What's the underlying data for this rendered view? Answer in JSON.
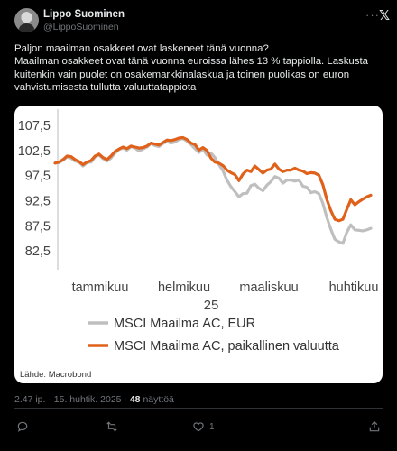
{
  "author": {
    "name": "Lippo Suominen",
    "handle": "@LippoSuominen"
  },
  "header": {
    "more_label": "···",
    "logo": "𝕏"
  },
  "tweet": {
    "lines": [
      "Paljon maailman osakkeet ovat laskeneet tänä vuonna?",
      "Maailman osakkeet ovat tänä vuonna euroissa lähes 13 % tappiolla. Laskusta",
      "kuitenkin vain puolet on osakemarkkinalaskua ja toinen puolikas on euron",
      "vahvistumisesta tullutta valuuttatappiota"
    ]
  },
  "meta": {
    "timestamp": "2.47 ip. · 15. huhtik. 2025 · ",
    "views_count": "48",
    "views_label": " näyttöä"
  },
  "actions": [
    {
      "icon": "reply-icon",
      "count": ""
    },
    {
      "icon": "retweet-icon",
      "count": ""
    },
    {
      "icon": "like-icon",
      "count": "1"
    },
    {
      "icon": "share-icon",
      "count": ""
    }
  ],
  "colors": {
    "eur_series": "#bfbfbf",
    "local_series": "#e0611a",
    "background": "#000000"
  },
  "chart_data": {
    "type": "line",
    "y_ticks": [
      "107,5",
      "102,5",
      "97,5",
      "92,5",
      "87,5",
      "82,5"
    ],
    "ylim": [
      80,
      109.5
    ],
    "x_ticks": [
      "tammikuu",
      "helmikuu",
      "maaliskuu",
      "huhtikuu"
    ],
    "x_sublabel": "25",
    "source": "Lähde: Macrobond",
    "grid": false,
    "legend_position": "bottom-left",
    "series": [
      {
        "name": "MSCI Maailma AC, EUR",
        "color": "#bfbfbf",
        "x": [
          0,
          1,
          2,
          3,
          4,
          5,
          6,
          7,
          8,
          9,
          10,
          11,
          12,
          13,
          14,
          15,
          16,
          17,
          18,
          19,
          20,
          21,
          22,
          23,
          24,
          25,
          26,
          27,
          28,
          29,
          30,
          31,
          32,
          33,
          34,
          35,
          36,
          37,
          38,
          39,
          40,
          41,
          42,
          43,
          44,
          45,
          46,
          47,
          48,
          49,
          50,
          51,
          52,
          53,
          54,
          55,
          56,
          57,
          58,
          59,
          60,
          61,
          62,
          63,
          64,
          65,
          66,
          67,
          68,
          69,
          70,
          71,
          72,
          73,
          74,
          75,
          76,
          77,
          78,
          79
        ],
        "values": [
          100.0,
          100.1,
          100.6,
          101.2,
          101.0,
          100.4,
          100.2,
          99.4,
          100.1,
          100.2,
          101.2,
          101.6,
          100.9,
          100.4,
          101.0,
          102.0,
          102.7,
          103.0,
          102.6,
          103.3,
          103.0,
          102.4,
          102.8,
          103.2,
          103.9,
          103.5,
          103.3,
          103.9,
          104.3,
          104.0,
          104.2,
          104.7,
          104.9,
          104.4,
          103.7,
          102.9,
          102.1,
          102.8,
          101.6,
          102.0,
          101.1,
          99.7,
          98.5,
          96.6,
          95.3,
          94.3,
          93.3,
          93.9,
          94.0,
          95.5,
          95.8,
          95.0,
          94.5,
          95.6,
          96.3,
          97.3,
          97.0,
          96.0,
          96.6,
          96.6,
          96.4,
          96.6,
          95.4,
          95.2,
          94.1,
          94.3,
          93.9,
          92.0,
          89.1,
          86.8,
          84.8,
          84.3,
          84.0,
          86.2,
          87.7,
          86.7,
          86.6,
          86.5,
          86.7,
          87.0
        ]
      },
      {
        "name": "MSCI Maailma AC, paikallinen valuutta",
        "color": "#e0611a",
        "x": [
          0,
          1,
          2,
          3,
          4,
          5,
          6,
          7,
          8,
          9,
          10,
          11,
          12,
          13,
          14,
          15,
          16,
          17,
          18,
          19,
          20,
          21,
          22,
          23,
          24,
          25,
          26,
          27,
          28,
          29,
          30,
          31,
          32,
          33,
          34,
          35,
          36,
          37,
          38,
          39,
          40,
          41,
          42,
          43,
          44,
          45,
          46,
          47,
          48,
          49,
          50,
          51,
          52,
          53,
          54,
          55,
          56,
          57,
          58,
          59,
          60,
          61,
          62,
          63,
          64,
          65,
          66,
          67,
          68,
          69,
          70,
          71,
          72,
          73,
          74,
          75,
          76,
          77,
          78,
          79
        ],
        "values": [
          100.0,
          100.2,
          100.7,
          101.4,
          101.3,
          100.7,
          100.3,
          99.7,
          100.2,
          100.5,
          101.4,
          101.8,
          101.1,
          100.7,
          101.4,
          102.3,
          102.8,
          103.2,
          102.9,
          103.4,
          103.2,
          103.0,
          103.1,
          103.4,
          104.0,
          103.8,
          103.6,
          104.1,
          104.6,
          104.5,
          104.7,
          105.0,
          105.1,
          104.7,
          104.0,
          103.7,
          102.6,
          103.1,
          102.5,
          101.0,
          100.2,
          100.0,
          99.5,
          98.6,
          98.1,
          97.7,
          96.5,
          97.8,
          98.6,
          98.3,
          99.4,
          98.7,
          98.0,
          98.6,
          98.8,
          99.8,
          98.8,
          98.3,
          98.6,
          98.6,
          99.0,
          98.6,
          98.4,
          97.9,
          98.1,
          98.0,
          97.6,
          95.7,
          92.7,
          90.5,
          88.8,
          88.5,
          88.8,
          90.8,
          92.7,
          91.7,
          92.3,
          92.8,
          93.3,
          93.6
        ]
      }
    ]
  }
}
